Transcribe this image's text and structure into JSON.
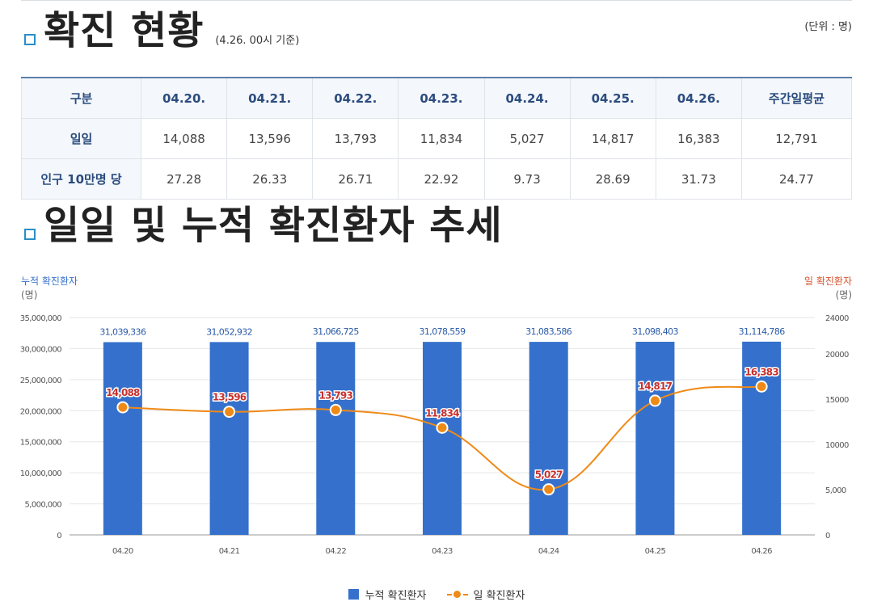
{
  "section1": {
    "title": "확진 현황",
    "subtitle": "(4.26. 00시 기준)",
    "unit": "(단위 : 명)"
  },
  "table": {
    "headers": [
      "구분",
      "04.20.",
      "04.21.",
      "04.22.",
      "04.23.",
      "04.24.",
      "04.25.",
      "04.26.",
      "주간일평균"
    ],
    "rows": [
      {
        "label": "일일",
        "values": [
          "14,088",
          "13,596",
          "13,793",
          "11,834",
          "5,027",
          "14,817",
          "16,383",
          "12,791"
        ]
      },
      {
        "label": "인구 10만명 당",
        "values": [
          "27.28",
          "26.33",
          "26.71",
          "22.92",
          "9.73",
          "28.69",
          "31.73",
          "24.77"
        ]
      }
    ]
  },
  "section2": {
    "title": "일일 및 누적 확진환자 추세"
  },
  "chart_labels": {
    "left_title": "누적 확진환자",
    "left_unit": "(명)",
    "right_title": "일 확진환자",
    "right_unit": "(명)"
  },
  "legend": {
    "bar": "누적 확진환자",
    "line": "일 확진환자"
  },
  "colors": {
    "bar": "#3571cc",
    "line": "#ef8a17",
    "left_axis_title": "#3571cc",
    "right_axis_title": "#d9502d",
    "line_label": "#c9302c"
  },
  "chart_data": {
    "type": "bar",
    "categories": [
      "04.20",
      "04.21",
      "04.22",
      "04.23",
      "04.24",
      "04.25",
      "04.26"
    ],
    "series": [
      {
        "name": "누적 확진환자",
        "type": "bar",
        "axis": "left",
        "values": [
          31039336,
          31052932,
          31066725,
          31078559,
          31083586,
          31098403,
          31114786
        ],
        "labels": [
          "31,039,336",
          "31,052,932",
          "31,066,725",
          "31,078,559",
          "31,083,586",
          "31,098,403",
          "31,114,786"
        ]
      },
      {
        "name": "일 확진환자",
        "type": "line",
        "axis": "right",
        "values": [
          14088,
          13596,
          13793,
          11834,
          5027,
          14817,
          16383
        ],
        "labels": [
          "14,088",
          "13,596",
          "13,793",
          "11,834",
          "5,027",
          "14,817",
          "16,383"
        ]
      }
    ],
    "y_left": {
      "min": 0,
      "max": 35000000,
      "ticks": [
        0,
        5000000,
        10000000,
        15000000,
        20000000,
        25000000,
        30000000,
        35000000
      ],
      "tick_labels": [
        "0",
        "5,000,000",
        "10,000,000",
        "15,000,000",
        "20,000,000",
        "25,000,000",
        "30,000,000",
        "35,000,000"
      ]
    },
    "y_right": {
      "min": 0,
      "max": 24000,
      "ticks": [
        0,
        5000,
        10000,
        15000,
        20000,
        24000
      ],
      "tick_labels": [
        "0",
        "5,000",
        "10000",
        "15000",
        "20000",
        "24000"
      ]
    },
    "grid": true,
    "legend_position": "bottom"
  }
}
